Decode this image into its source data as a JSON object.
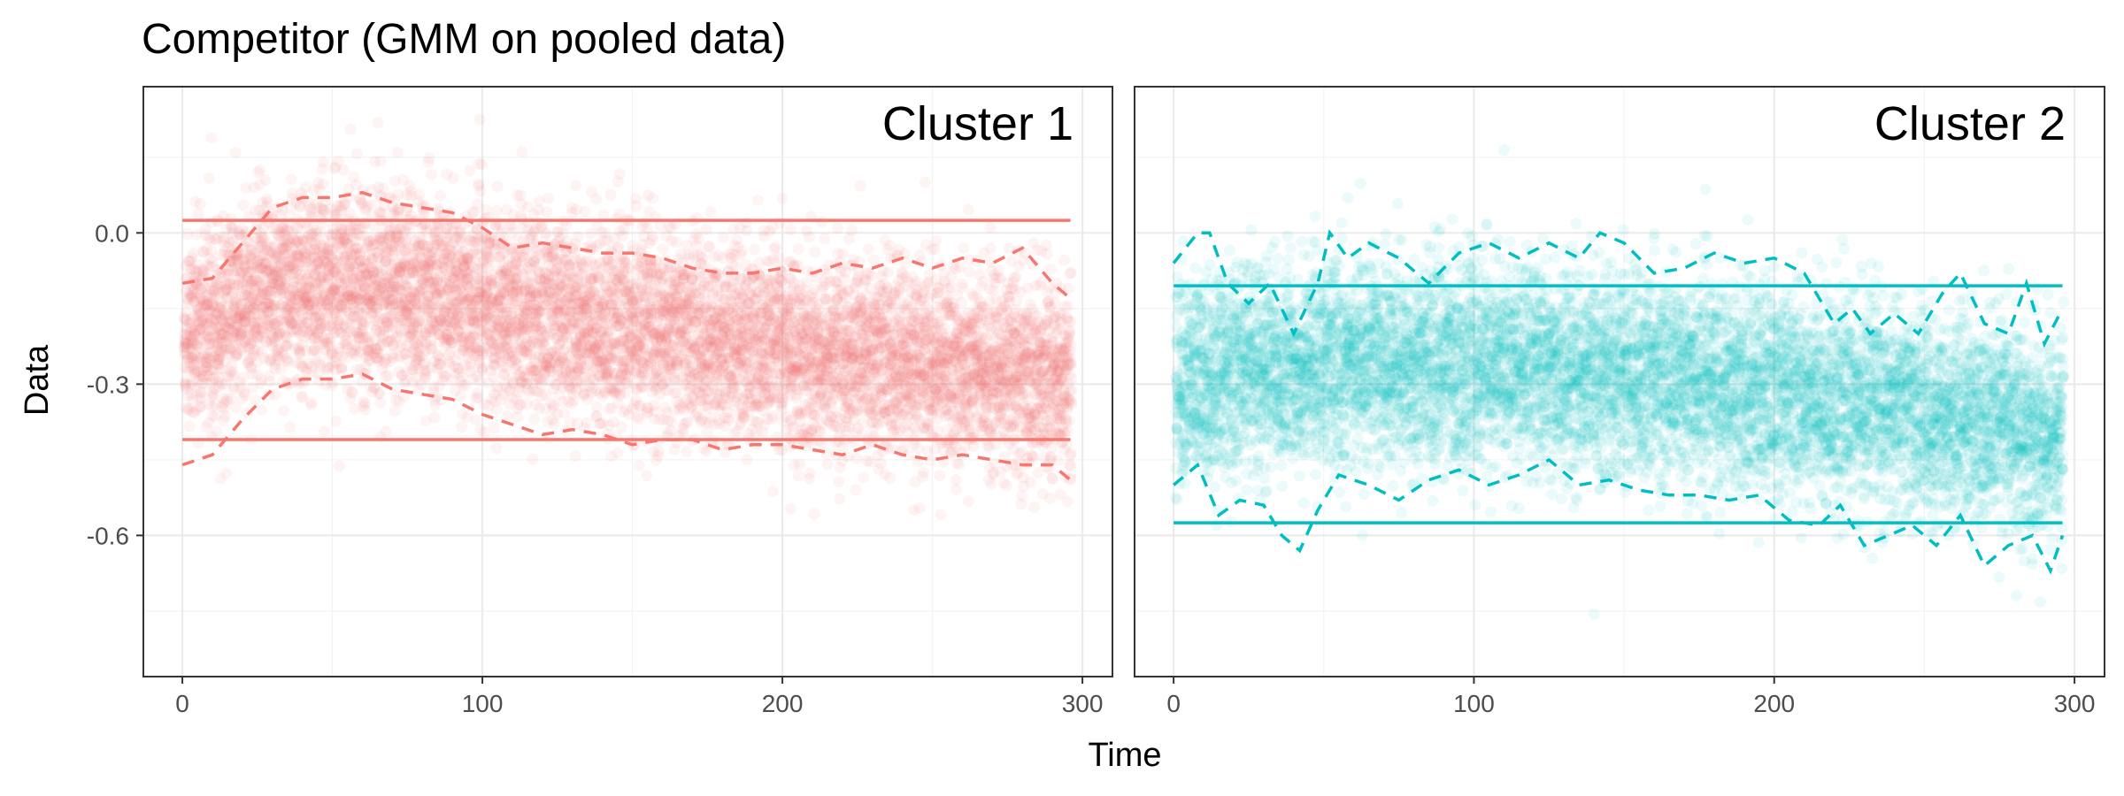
{
  "chart_data": {
    "type": "scatter",
    "title": "Competitor (GMM on pooled data)",
    "xlabel": "Time",
    "ylabel": "Data",
    "xlim": [
      -13,
      310
    ],
    "ylim": [
      -0.88,
      0.29
    ],
    "x_ticks": [
      0,
      100,
      200,
      300
    ],
    "x_tick_labels": [
      "0",
      "100",
      "200",
      "300"
    ],
    "y_ticks": [
      0.0,
      -0.3,
      -0.6
    ],
    "y_tick_labels": [
      "0.0",
      "-0.3",
      "-0.6"
    ],
    "point_alpha": 0.08,
    "panels": [
      {
        "label": "Cluster 1",
        "color": "#F8766D",
        "mean_trend": {
          "x": [
            0,
            30,
            60,
            100,
            150,
            200,
            250,
            296
          ],
          "y": [
            -0.2,
            -0.12,
            -0.1,
            -0.14,
            -0.19,
            -0.23,
            -0.26,
            -0.29
          ]
        },
        "spread_sd": 0.095,
        "hlines": {
          "upper": 0.025,
          "lower": -0.41
        },
        "dashed_upper": {
          "x": [
            0,
            10,
            20,
            30,
            40,
            50,
            60,
            70,
            80,
            90,
            100,
            110,
            120,
            130,
            140,
            150,
            160,
            170,
            180,
            190,
            200,
            210,
            220,
            230,
            240,
            250,
            260,
            270,
            280,
            290,
            296
          ],
          "y": [
            -0.1,
            -0.09,
            -0.02,
            0.05,
            0.07,
            0.07,
            0.08,
            0.06,
            0.05,
            0.04,
            0.01,
            -0.03,
            -0.02,
            -0.03,
            -0.04,
            -0.04,
            -0.05,
            -0.07,
            -0.08,
            -0.08,
            -0.07,
            -0.08,
            -0.06,
            -0.07,
            -0.05,
            -0.07,
            -0.05,
            -0.06,
            -0.03,
            -0.1,
            -0.13
          ]
        },
        "dashed_lower": {
          "x": [
            0,
            10,
            20,
            30,
            40,
            50,
            60,
            70,
            80,
            90,
            100,
            110,
            120,
            130,
            140,
            150,
            160,
            170,
            180,
            190,
            200,
            210,
            220,
            230,
            240,
            250,
            260,
            270,
            280,
            290,
            296
          ],
          "y": [
            -0.46,
            -0.44,
            -0.37,
            -0.31,
            -0.29,
            -0.29,
            -0.28,
            -0.31,
            -0.32,
            -0.33,
            -0.36,
            -0.38,
            -0.4,
            -0.39,
            -0.4,
            -0.42,
            -0.41,
            -0.41,
            -0.43,
            -0.42,
            -0.42,
            -0.43,
            -0.44,
            -0.42,
            -0.44,
            -0.45,
            -0.44,
            -0.45,
            -0.46,
            -0.46,
            -0.49
          ]
        }
      },
      {
        "label": "Cluster 2",
        "color": "#00BFC4",
        "mean_trend": {
          "x": [
            0,
            30,
            60,
            100,
            150,
            200,
            230,
            260,
            296
          ],
          "y": [
            -0.3,
            -0.27,
            -0.26,
            -0.26,
            -0.28,
            -0.31,
            -0.34,
            -0.37,
            -0.4
          ]
        },
        "spread_sd": 0.1,
        "hlines": {
          "upper": -0.105,
          "lower": -0.575
        },
        "dashed_upper": {
          "x": [
            0,
            8,
            12,
            18,
            25,
            32,
            40,
            48,
            52,
            58,
            65,
            75,
            85,
            95,
            105,
            115,
            125,
            135,
            142,
            150,
            160,
            170,
            180,
            190,
            200,
            210,
            220,
            226,
            232,
            240,
            248,
            256,
            262,
            270,
            278,
            284,
            290,
            296
          ],
          "y": [
            -0.06,
            0.0,
            0.0,
            -0.1,
            -0.14,
            -0.1,
            -0.2,
            -0.1,
            0.0,
            -0.05,
            -0.02,
            -0.05,
            -0.1,
            -0.04,
            -0.02,
            -0.05,
            -0.02,
            -0.05,
            0.0,
            -0.02,
            -0.08,
            -0.07,
            -0.04,
            -0.06,
            -0.05,
            -0.08,
            -0.18,
            -0.15,
            -0.2,
            -0.16,
            -0.2,
            -0.12,
            -0.08,
            -0.18,
            -0.2,
            -0.1,
            -0.22,
            -0.15
          ]
        },
        "dashed_lower": {
          "x": [
            0,
            8,
            15,
            22,
            30,
            36,
            42,
            48,
            55,
            65,
            75,
            85,
            95,
            105,
            115,
            125,
            135,
            145,
            155,
            165,
            175,
            185,
            195,
            205,
            215,
            222,
            230,
            238,
            246,
            254,
            262,
            270,
            278,
            286,
            292,
            296
          ],
          "y": [
            -0.5,
            -0.46,
            -0.56,
            -0.53,
            -0.54,
            -0.6,
            -0.63,
            -0.55,
            -0.48,
            -0.5,
            -0.53,
            -0.49,
            -0.47,
            -0.5,
            -0.48,
            -0.45,
            -0.5,
            -0.49,
            -0.51,
            -0.52,
            -0.52,
            -0.53,
            -0.52,
            -0.57,
            -0.58,
            -0.54,
            -0.62,
            -0.6,
            -0.58,
            -0.62,
            -0.56,
            -0.66,
            -0.62,
            -0.6,
            -0.67,
            -0.6
          ]
        }
      }
    ]
  }
}
